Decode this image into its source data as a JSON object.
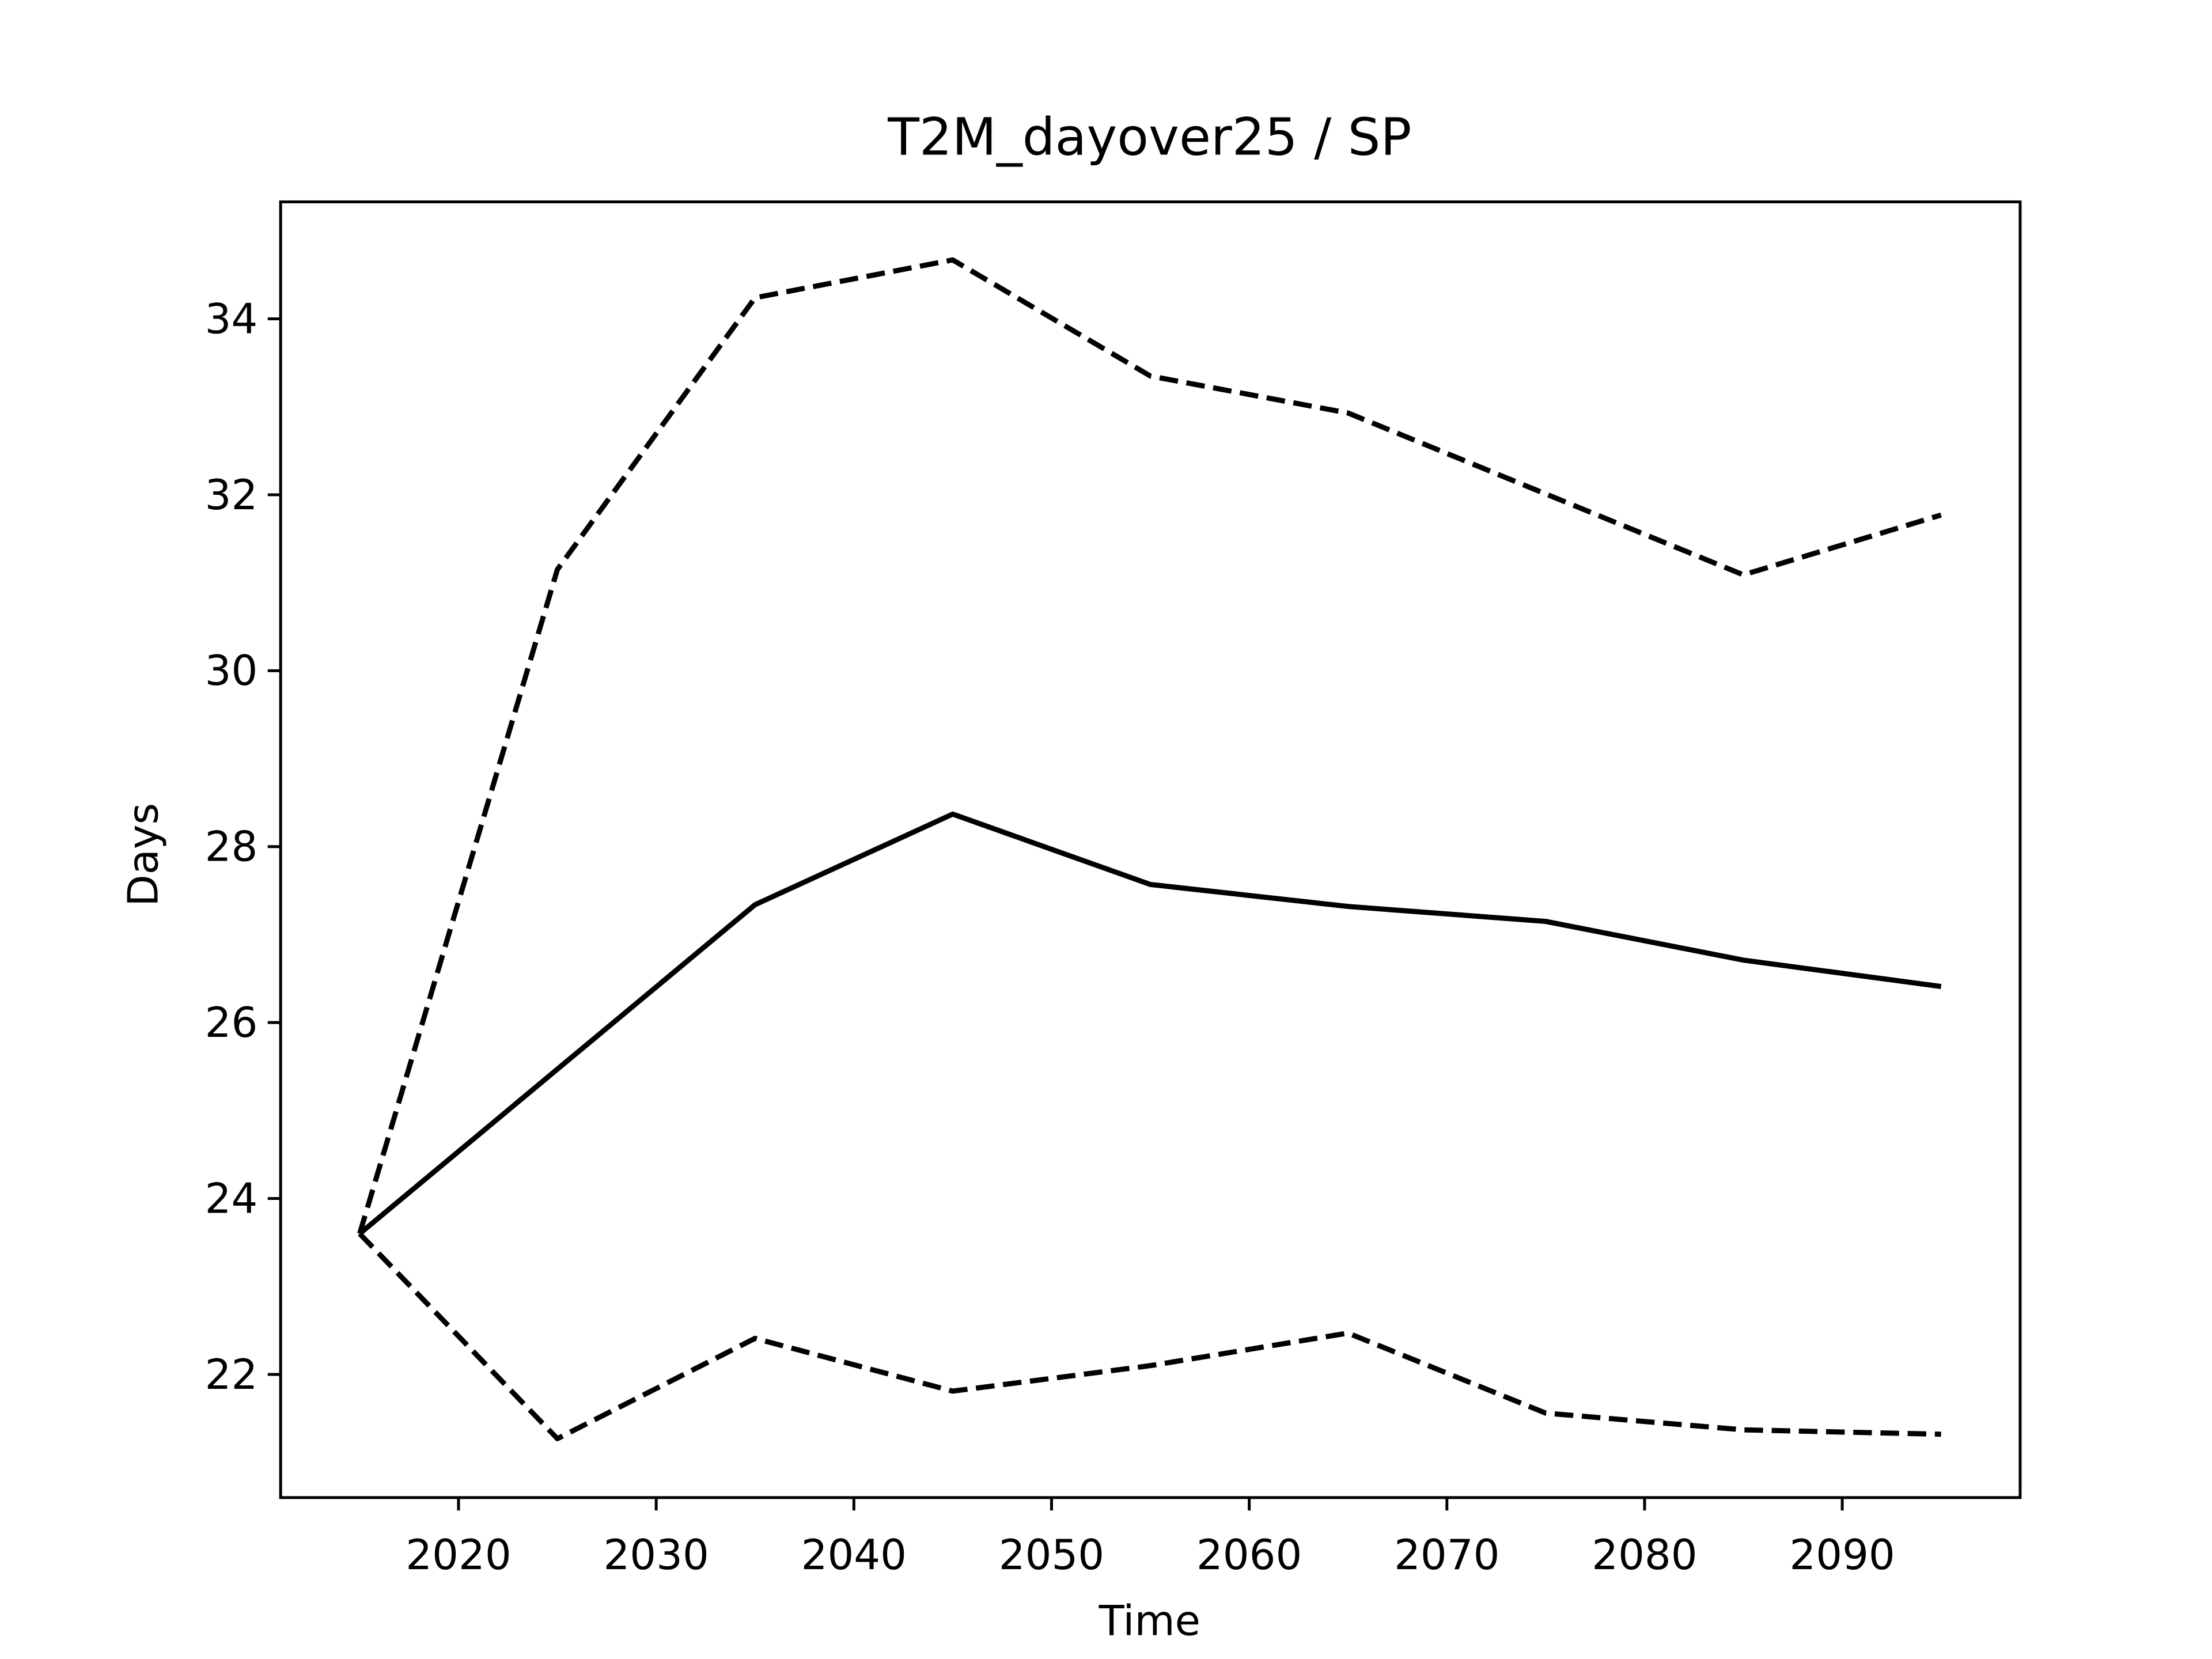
{
  "chart_data": {
    "type": "line",
    "title": "T2M_dayover25 / SP",
    "x_label": "Time",
    "y_label": "Days",
    "x": [
      2015,
      2025,
      2035,
      2045,
      2055,
      2065,
      2075,
      2085,
      2095
    ],
    "series": [
      {
        "color": "#000000",
        "linestyle": "solid",
        "values": [
          23.6,
          25.47,
          27.34,
          28.37,
          27.57,
          27.32,
          27.15,
          26.71,
          26.41
        ]
      },
      {
        "color": "#000000",
        "linestyle": "dashed",
        "values": [
          23.6,
          31.15,
          34.24,
          34.67,
          33.35,
          32.93,
          32.01,
          31.09,
          31.77
        ]
      },
      {
        "color": "#000000",
        "linestyle": "dashed",
        "values": [
          23.6,
          21.27,
          22.41,
          21.81,
          22.1,
          22.47,
          21.56,
          21.37,
          21.32
        ]
      }
    ],
    "xlim": [
      2011,
      2099
    ],
    "xticks": [
      2020,
      2030,
      2040,
      2050,
      2060,
      2070,
      2080,
      2090
    ],
    "ylim": [
      20.6,
      35.33
    ],
    "yticks": [
      22,
      24,
      26,
      28,
      30,
      32,
      34
    ],
    "grid": false
  }
}
